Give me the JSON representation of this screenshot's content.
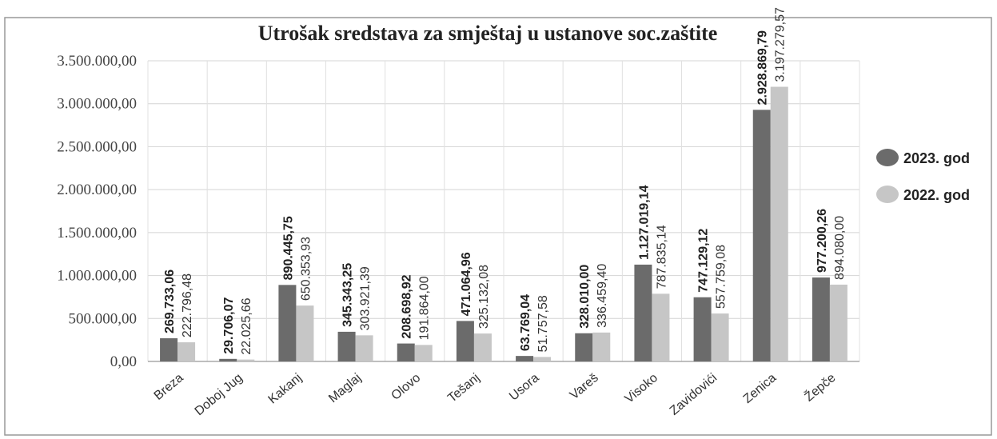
{
  "chart_data": {
    "type": "bar",
    "title": "Utrošak sredstava za smještaj u ustanove soc.zaštite",
    "categories": [
      "Breza",
      "Doboj Jug",
      "Kakanj",
      "Maglaj",
      "Olovo",
      "Tešanj",
      "Usora",
      "Vareš",
      "Visoko",
      "Zavidovići",
      "Zenica",
      "Žepče"
    ],
    "series": [
      {
        "name": "2023. god",
        "color": "#6b6b6b",
        "values": [
          269733.06,
          29706.07,
          890445.75,
          345343.25,
          208698.92,
          471064.96,
          63769.04,
          328010.0,
          1127019.14,
          747129.12,
          2928869.79,
          977200.26
        ],
        "value_labels": [
          "269.733,06",
          "29.706,07",
          "890.445,75",
          "345.343,25",
          "208.698,92",
          "471.064,96",
          "63.769,04",
          "328.010,00",
          "1.127.019,14",
          "747.129,12",
          "2.928.869,79",
          "977.200,26"
        ]
      },
      {
        "name": "2022. god",
        "color": "#c6c6c6",
        "values": [
          222796.48,
          22025.66,
          650353.93,
          303921.39,
          191864.0,
          325132.08,
          51757.58,
          336459.4,
          787835.14,
          557759.08,
          3197279.57,
          894080.0
        ],
        "value_labels": [
          "222.796,48",
          "22.025,66",
          "650.353,93",
          "303.921,39",
          "191.864,00",
          "325.132,08",
          "51.757,58",
          "336.459,40",
          "787.835,14",
          "557.759,08",
          "3.197.279,57",
          "894.080,00"
        ]
      }
    ],
    "ylim": [
      0,
      3500000
    ],
    "yticks": [
      {
        "value": 0,
        "label": "0,00"
      },
      {
        "value": 500000,
        "label": "500.000,00"
      },
      {
        "value": 1000000,
        "label": "1.000.000,00"
      },
      {
        "value": 1500000,
        "label": "1.500.000,00"
      },
      {
        "value": 2000000,
        "label": "2.000.000,00"
      },
      {
        "value": 2500000,
        "label": "2.500.000,00"
      },
      {
        "value": 3000000,
        "label": "3.000.000,00"
      },
      {
        "value": 3500000,
        "label": "3.500.000,00"
      }
    ],
    "grid": true,
    "legend": "right"
  }
}
